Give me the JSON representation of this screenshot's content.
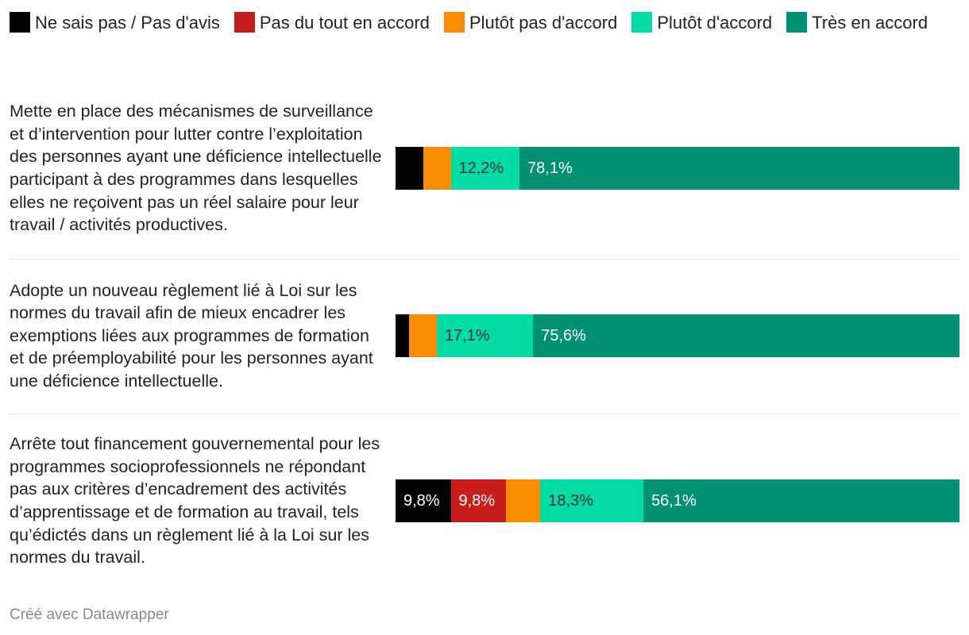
{
  "chart_data": {
    "type": "bar",
    "orientation": "horizontal",
    "stacked": true,
    "xlim": [
      0,
      100
    ],
    "legend_placement": "top",
    "series": [
      {
        "name": "Ne sais pas / Pas d'avis",
        "color": "#000000",
        "label_color": "#ffffff",
        "values": [
          4.9,
          2.4,
          9.8
        ],
        "labels": [
          "",
          "",
          "9,8%"
        ]
      },
      {
        "name": "Pas du tout en accord",
        "color": "#c71e1d",
        "label_color": "#ffffff",
        "values": [
          0,
          0,
          9.8
        ],
        "labels": [
          "",
          "",
          "9,8%"
        ]
      },
      {
        "name": "Plutôt pas d'accord",
        "color": "#fa8c00",
        "label_color": "#333333",
        "values": [
          4.9,
          4.9,
          6.1
        ],
        "labels": [
          "",
          "",
          ""
        ]
      },
      {
        "name": "Plutôt d'accord",
        "color": "#00dca6",
        "label_color": "#333333",
        "values": [
          12.2,
          17.1,
          18.3
        ],
        "labels": [
          "12,2%",
          "17,1%",
          "18,3%"
        ]
      },
      {
        "name": "Très en accord",
        "color": "#009175",
        "label_color": "#ffffff",
        "values": [
          78.1,
          75.6,
          56.1
        ],
        "labels": [
          "78,1%",
          "75,6%",
          "56,1%"
        ]
      }
    ],
    "categories": [
      "Mette en place des mécanismes de surveillance et d’intervention pour lutter contre l’exploitation des personnes ayant une déficience intellectuelle participant à des programmes dans lesquelles elles ne reçoivent pas un réel salaire pour leur travail / activités productives.",
      "Adopte un nouveau règlement lié à Loi sur les normes du travail afin de mieux encadrer les exemptions liées aux programmes de formation et de préemployabilité pour les personnes ayant une déficience intellectuelle.",
      "Arrête tout financement gouvernemental pour les programmes socioprofessionnels ne répondant pas aux critères d’encadrement des activités d’apprentissage et de formation au travail, tels qu’édictés dans un règlement lié à la Loi sur les normes du travail."
    ]
  },
  "footer": "Créé avec Datawrapper"
}
